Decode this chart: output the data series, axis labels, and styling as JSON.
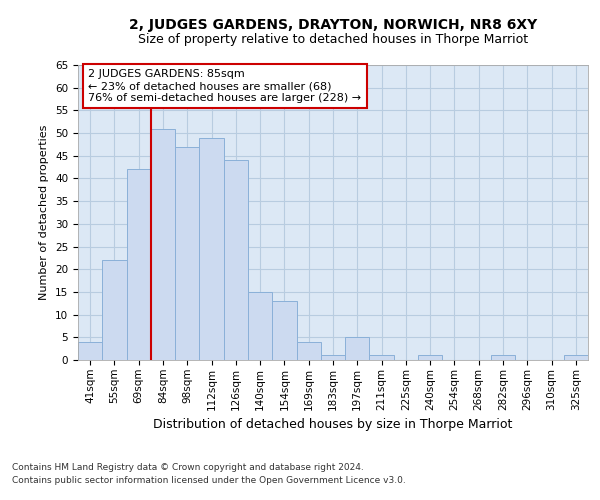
{
  "title": "2, JUDGES GARDENS, DRAYTON, NORWICH, NR8 6XY",
  "subtitle": "Size of property relative to detached houses in Thorpe Marriot",
  "xlabel": "Distribution of detached houses by size in Thorpe Marriot",
  "ylabel": "Number of detached properties",
  "categories": [
    "41sqm",
    "55sqm",
    "69sqm",
    "84sqm",
    "98sqm",
    "112sqm",
    "126sqm",
    "140sqm",
    "154sqm",
    "169sqm",
    "183sqm",
    "197sqm",
    "211sqm",
    "225sqm",
    "240sqm",
    "254sqm",
    "268sqm",
    "282sqm",
    "296sqm",
    "310sqm",
    "325sqm"
  ],
  "values": [
    4,
    22,
    42,
    51,
    47,
    49,
    44,
    15,
    13,
    4,
    1,
    5,
    1,
    0,
    1,
    0,
    0,
    1,
    0,
    0,
    1
  ],
  "bar_color": "#ccdaf0",
  "bar_edge_color": "#8ab0d8",
  "vline_color": "#cc0000",
  "vline_x_index": 3,
  "annotation_text": "2 JUDGES GARDENS: 85sqm\n← 23% of detached houses are smaller (68)\n76% of semi-detached houses are larger (228) →",
  "annotation_box_color": "#ffffff",
  "annotation_box_edge": "#cc0000",
  "ylim": [
    0,
    65
  ],
  "yticks": [
    0,
    5,
    10,
    15,
    20,
    25,
    30,
    35,
    40,
    45,
    50,
    55,
    60,
    65
  ],
  "grid_color": "#b8cce0",
  "bg_color": "#dce8f5",
  "footer1": "Contains HM Land Registry data © Crown copyright and database right 2024.",
  "footer2": "Contains public sector information licensed under the Open Government Licence v3.0.",
  "title_fontsize": 10,
  "subtitle_fontsize": 9,
  "xlabel_fontsize": 9,
  "ylabel_fontsize": 8,
  "tick_fontsize": 7.5,
  "annotation_fontsize": 8,
  "footer_fontsize": 6.5
}
